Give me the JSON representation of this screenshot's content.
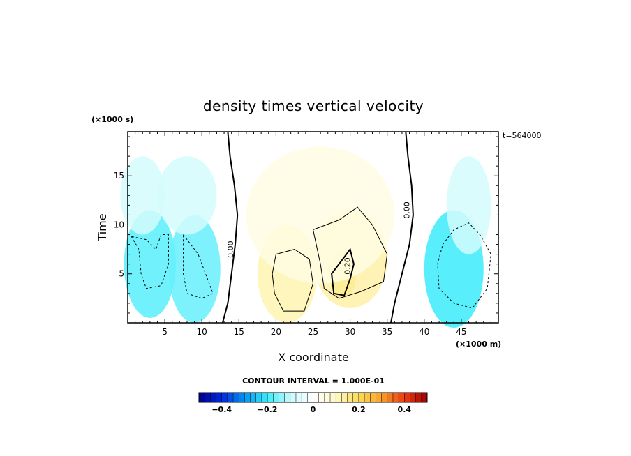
{
  "chart_data": {
    "type": "heatmap",
    "title": "density times vertical velocity",
    "xlabel": "X coordinate",
    "ylabel": "Time",
    "x_unit": "(×1000 m)",
    "y_unit": "(×1000 s)",
    "time_label": "t=564000",
    "xlim": [
      0,
      50
    ],
    "ylim": [
      0,
      19.5
    ],
    "x_ticks": [
      5,
      10,
      15,
      20,
      25,
      30,
      35,
      40,
      45
    ],
    "y_ticks": [
      5,
      10,
      15
    ],
    "x_tick_labels": [
      "5",
      "10",
      "15",
      "20",
      "25",
      "30",
      "35",
      "40",
      "45"
    ],
    "y_tick_labels": [
      "5",
      "10",
      "15"
    ],
    "contour_interval_text": "CONTOUR INTERVAL = 1.000E-01",
    "contour_labels": [
      {
        "text": "0.00",
        "x": 14.2,
        "y": 7.5
      },
      {
        "text": "0.00",
        "x": 38.0,
        "y": 11.5
      },
      {
        "text": "0.20",
        "x": 30.0,
        "y": 5.8
      }
    ],
    "colorbar": {
      "min": -0.5,
      "max": 0.5,
      "tick_values": [
        -0.4,
        -0.2,
        0,
        0.2,
        0.4
      ],
      "tick_labels": [
        "−0.4",
        "−0.2",
        "0",
        "0.2",
        "0.4"
      ]
    },
    "regions": [
      {
        "x": 3,
        "y": 6,
        "rx": 3.5,
        "ry": 5.5,
        "value": -0.18
      },
      {
        "x": 9,
        "y": 5.5,
        "rx": 3.5,
        "ry": 5.5,
        "value": -0.17
      },
      {
        "x": 2,
        "y": 13,
        "rx": 3,
        "ry": 4,
        "value": -0.08
      },
      {
        "x": 8,
        "y": 13,
        "rx": 4,
        "ry": 4,
        "value": -0.08
      },
      {
        "x": 44,
        "y": 5.5,
        "rx": 4,
        "ry": 6,
        "value": -0.2
      },
      {
        "x": 46,
        "y": 12,
        "rx": 3,
        "ry": 5,
        "value": -0.08
      },
      {
        "x": 21.5,
        "y": 5,
        "rx": 4,
        "ry": 5,
        "value": 0.12
      },
      {
        "x": 30,
        "y": 6.5,
        "rx": 5,
        "ry": 5,
        "value": 0.13
      },
      {
        "x": 29,
        "y": 5,
        "rx": 1.8,
        "ry": 2.5,
        "value": 0.15
      },
      {
        "x": 26,
        "y": 11,
        "rx": 10,
        "ry": 7,
        "value": 0.05
      }
    ]
  }
}
